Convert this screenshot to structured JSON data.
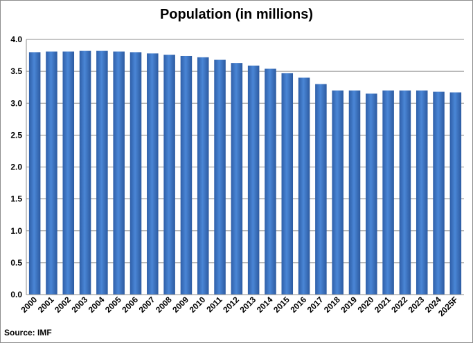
{
  "chart_data": {
    "type": "bar",
    "title": "Population (in millions)",
    "source": "Source: IMF",
    "categories": [
      "2000",
      "2001",
      "2002",
      "2003",
      "2004",
      "2005",
      "2006",
      "2007",
      "2008",
      "2009",
      "2010",
      "2011",
      "2012",
      "2013",
      "2014",
      "2015",
      "2016",
      "2017",
      "2018",
      "2019",
      "2020",
      "2021",
      "2022",
      "2023",
      "2024",
      "2025F"
    ],
    "values": [
      3.8,
      3.81,
      3.81,
      3.82,
      3.82,
      3.81,
      3.8,
      3.78,
      3.76,
      3.74,
      3.72,
      3.68,
      3.63,
      3.59,
      3.54,
      3.47,
      3.4,
      3.3,
      3.2,
      3.2,
      3.15,
      3.2,
      3.2,
      3.2,
      3.18,
      3.17
    ],
    "ylim": [
      0,
      4.0
    ],
    "yticks": [
      "0.0",
      "0.5",
      "1.0",
      "1.5",
      "2.0",
      "2.5",
      "3.0",
      "3.5",
      "4.0"
    ],
    "grid": true,
    "bar_color": "#3a72c1"
  }
}
